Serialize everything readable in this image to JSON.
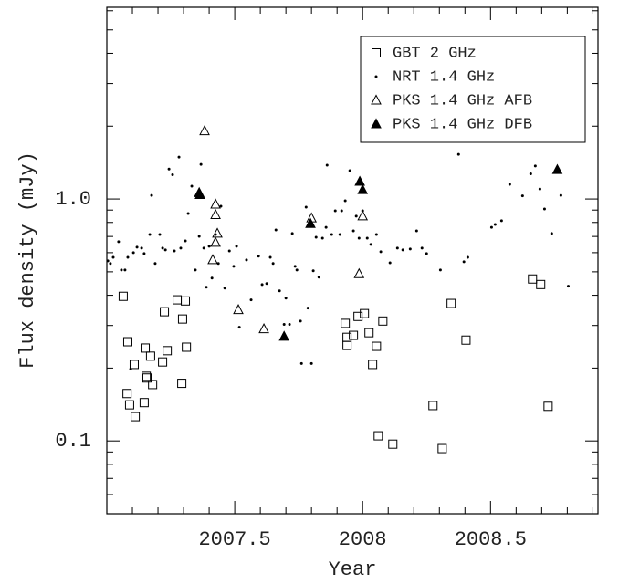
{
  "chart_data": {
    "type": "scatter",
    "xlabel": "Year",
    "ylabel": "Flux density (mJy)",
    "xlim": [
      2007.0,
      2008.92
    ],
    "ylim": [
      0.05,
      6.2
    ],
    "ylog": true,
    "grid": false,
    "legend": "upper right",
    "xticks": [
      2007.5,
      2008,
      2008.5
    ],
    "xminorticks": [
      2007.1,
      2007.2,
      2007.3,
      2007.4,
      2007.6,
      2007.7,
      2007.8,
      2007.9,
      2008.1,
      2008.2,
      2008.3,
      2008.4,
      2008.6,
      2008.7,
      2008.8,
      2008.9
    ],
    "yticks": [
      0.1,
      {
        "value": 1,
        "label": "1.0"
      }
    ],
    "yminorticks": [
      0.06,
      0.07,
      0.08,
      0.09,
      0.2,
      0.3,
      0.4,
      0.5,
      0.6,
      0.7,
      0.8,
      0.9,
      2,
      3,
      4,
      5,
      6
    ],
    "series": [
      {
        "name": "GBT 2 GHz",
        "color": "#000000",
        "marker": "square",
        "x": [
          2007.064,
          2007.082,
          2007.079,
          2007.089,
          2007.111,
          2007.107,
          2007.146,
          2007.15,
          2007.154,
          2007.157,
          2007.171,
          2007.179,
          2007.218,
          2007.225,
          2007.236,
          2007.275,
          2007.293,
          2007.296,
          2007.307,
          2007.311,
          2007.932,
          2007.939,
          2007.939,
          2007.964,
          2007.982,
          2008.007,
          2008.025,
          2008.039,
          2008.054,
          2008.061,
          2008.079,
          2008.118,
          2008.275,
          2008.311,
          2008.346,
          2008.404,
          2008.664,
          2008.696,
          2008.725
        ],
        "values": [
          0.396,
          0.257,
          0.157,
          0.141,
          0.126,
          0.207,
          0.144,
          0.242,
          0.185,
          0.182,
          0.224,
          0.171,
          0.212,
          0.342,
          0.236,
          0.383,
          0.173,
          0.319,
          0.379,
          0.244,
          0.306,
          0.268,
          0.248,
          0.273,
          0.327,
          0.336,
          0.28,
          0.207,
          0.246,
          0.105,
          0.313,
          0.097,
          0.14,
          0.093,
          0.37,
          0.261,
          0.467,
          0.443,
          0.139
        ]
      },
      {
        "name": "NRT 1.4 GHz",
        "color": "#000000",
        "marker": "dot",
        "x": [
          2007.004,
          2007.014,
          2007.025,
          2007.046,
          2007.057,
          2007.071,
          2007.082,
          2007.093,
          2007.104,
          2007.118,
          2007.136,
          2007.146,
          2007.168,
          2007.175,
          2007.189,
          2007.207,
          2007.218,
          2007.229,
          2007.243,
          2007.257,
          2007.264,
          2007.282,
          2007.289,
          2007.307,
          2007.318,
          2007.332,
          2007.346,
          2007.361,
          2007.368,
          2007.379,
          2007.389,
          2007.4,
          2007.411,
          2007.425,
          2007.436,
          2007.446,
          2007.461,
          2007.479,
          2007.496,
          2007.507,
          2007.518,
          2007.546,
          2007.564,
          2007.593,
          2007.607,
          2007.625,
          2007.639,
          2007.65,
          2007.661,
          2007.675,
          2007.693,
          2007.7,
          2007.714,
          2007.725,
          2007.736,
          2007.743,
          2007.757,
          2007.761,
          2007.779,
          2007.786,
          2007.8,
          2007.807,
          2007.818,
          2007.829,
          2007.843,
          2007.857,
          2007.861,
          2007.879,
          2007.893,
          2007.911,
          2007.918,
          2007.932,
          2007.95,
          2007.964,
          2007.975,
          2007.986,
          2008.0,
          2008.018,
          2008.032,
          2008.054,
          2008.071,
          2008.107,
          2008.136,
          2008.157,
          2008.186,
          2008.211,
          2008.232,
          2008.25,
          2008.304,
          2008.375,
          2008.396,
          2008.411,
          2008.504,
          2008.518,
          2008.543,
          2008.575,
          2008.625,
          2008.657,
          2008.675,
          2008.693,
          2008.711,
          2008.739,
          2008.775,
          2008.804
        ],
        "values": [
          0.555,
          0.541,
          0.574,
          0.666,
          0.509,
          0.509,
          0.574,
          0.198,
          0.6,
          0.632,
          0.627,
          0.595,
          0.713,
          1.035,
          0.541,
          0.713,
          0.627,
          0.616,
          1.33,
          1.26,
          0.61,
          1.49,
          0.627,
          0.671,
          0.871,
          1.13,
          0.509,
          0.701,
          1.39,
          0.627,
          0.432,
          0.638,
          0.471,
          0.713,
          0.541,
          0.933,
          0.428,
          0.61,
          0.527,
          0.638,
          0.295,
          0.56,
          0.383,
          0.58,
          0.443,
          0.447,
          0.574,
          0.541,
          0.745,
          0.417,
          0.303,
          0.389,
          0.303,
          0.72,
          0.527,
          0.509,
          0.313,
          0.209,
          0.925,
          0.354,
          0.209,
          0.505,
          0.695,
          0.475,
          0.689,
          0.764,
          1.38,
          0.713,
          0.894,
          0.713,
          0.894,
          0.983,
          1.31,
          0.738,
          0.849,
          0.689,
          0.894,
          0.689,
          0.649,
          0.713,
          0.605,
          0.545,
          0.627,
          0.616,
          0.621,
          0.738,
          0.627,
          0.595,
          0.509,
          1.53,
          0.55,
          0.574,
          0.764,
          0.785,
          0.813,
          1.15,
          1.03,
          1.27,
          1.37,
          1.1,
          0.909,
          0.72,
          1.035,
          0.436
        ]
      },
      {
        "name": "PKS 1.4 GHz AFB",
        "color": "#000000",
        "marker": "triangle-open",
        "x": [
          2007.382,
          2007.425,
          2007.425,
          2007.432,
          2007.425,
          2007.414,
          2007.514,
          2007.614,
          2007.8,
          2008.0,
          2007.986
        ],
        "values": [
          1.91,
          0.95,
          0.86,
          0.72,
          0.66,
          0.56,
          0.348,
          0.29,
          0.833,
          0.849,
          0.49
        ]
      },
      {
        "name": "PKS 1.4 GHz DFB",
        "color": "#000000",
        "marker": "triangle-filled",
        "x": [
          2007.361,
          2007.364,
          2007.693,
          2007.796,
          2007.989,
          2008.0,
          2008.761
        ],
        "values": [
          1.06,
          1.04,
          0.27,
          0.79,
          1.18,
          1.09,
          1.32
        ]
      }
    ]
  }
}
